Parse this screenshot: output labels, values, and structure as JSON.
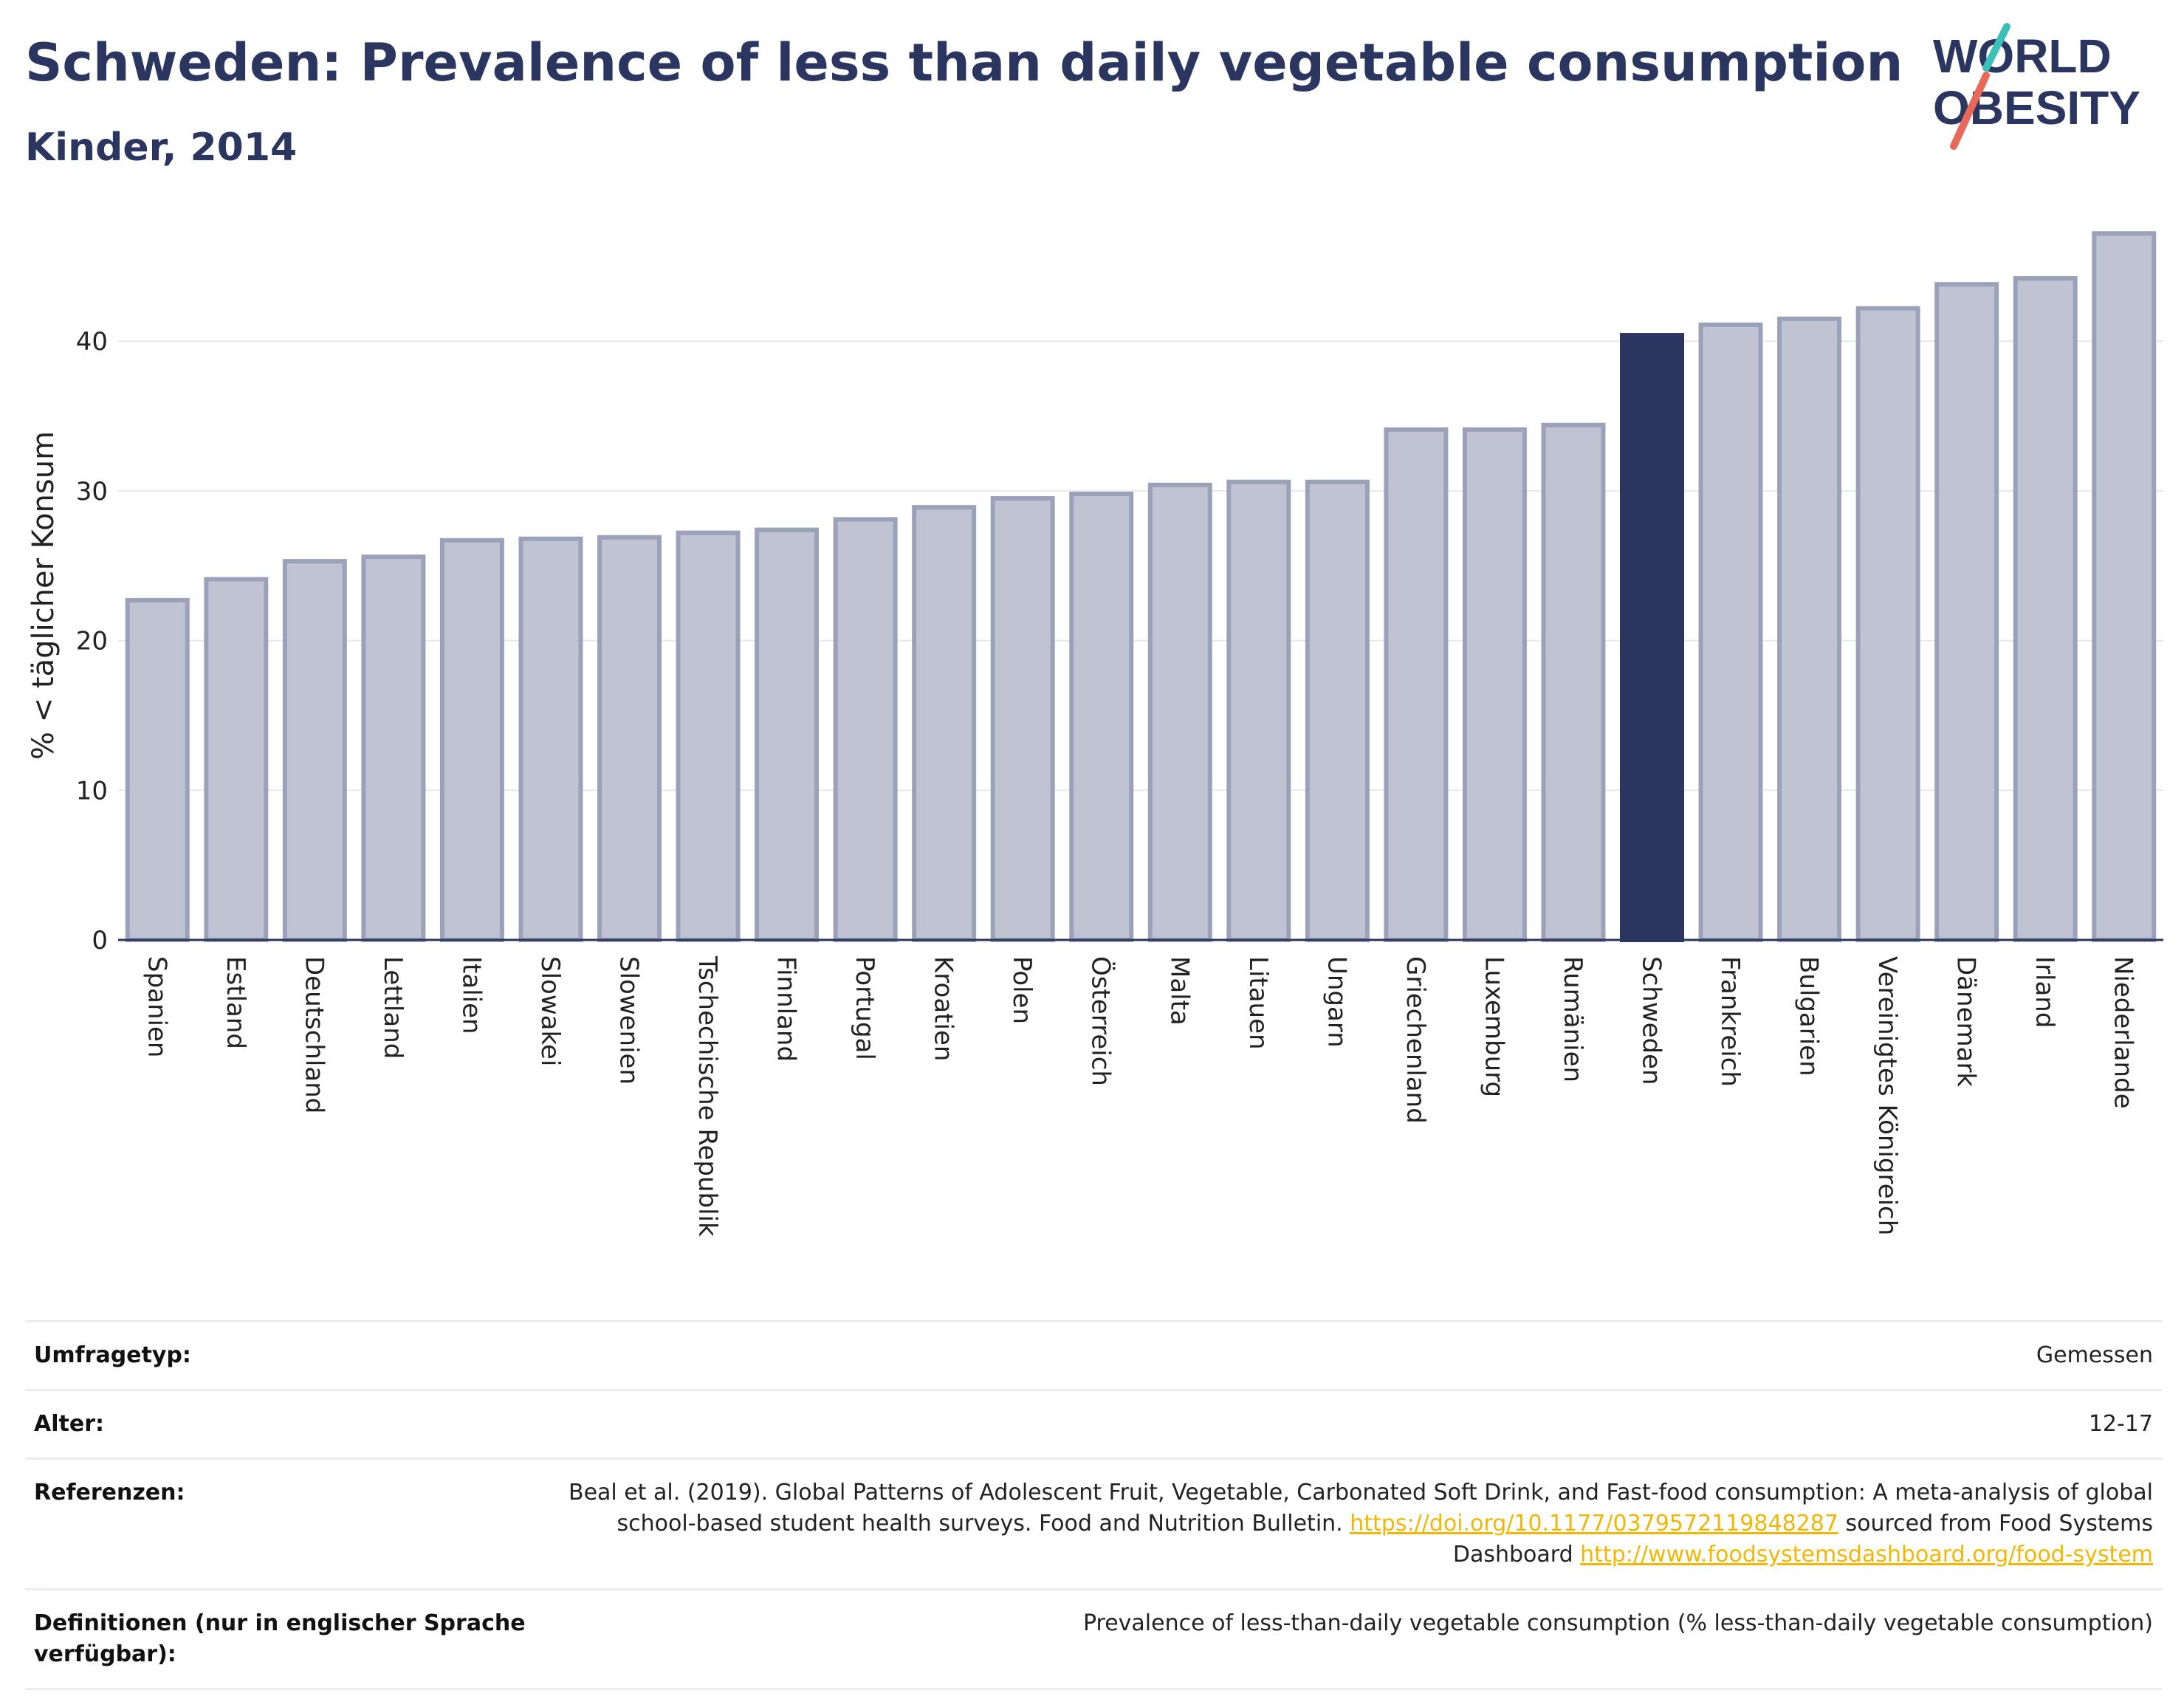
{
  "header": {
    "title": "Schweden: Prevalence of less than daily vegetable consumption",
    "subtitle": "Kinder, 2014"
  },
  "logo": {
    "line1": "WORLD",
    "line2": "OBESITY",
    "colors": {
      "text": "#2a3560",
      "slash_top": "#3bbfb9",
      "slash_bottom": "#e8685a"
    }
  },
  "chart_data": {
    "type": "bar",
    "ylabel": "% < täglicher Konsum",
    "xlabel": "",
    "ylim": [
      0,
      48
    ],
    "yticks": [
      0,
      10,
      20,
      30,
      40
    ],
    "grid": true,
    "categories": [
      "Spanien",
      "Estland",
      "Deutschland",
      "Lettland",
      "Italien",
      "Slowakei",
      "Slowenien",
      "Tschechische Republik",
      "Finnland",
      "Portugal",
      "Kroatien",
      "Polen",
      "Österreich",
      "Malta",
      "Litauen",
      "Ungarn",
      "Griechenland",
      "Luxemburg",
      "Rumänien",
      "Schweden",
      "Frankreich",
      "Bulgarien",
      "Vereinigtes Königreich",
      "Dänemark",
      "Irland",
      "Niederlande"
    ],
    "values": [
      22.7,
      24.1,
      25.3,
      25.6,
      26.7,
      26.8,
      26.9,
      27.2,
      27.4,
      28.1,
      28.9,
      29.5,
      29.8,
      30.4,
      30.6,
      30.6,
      34.1,
      34.1,
      34.4,
      40.4,
      41.1,
      41.5,
      42.2,
      43.8,
      44.2,
      47.2
    ],
    "highlight": "Schweden",
    "colors": {
      "bar": "#c0c4d2",
      "bar_border": "#9ba1b8",
      "highlight": "#2a3560",
      "grid": "#e6e8ee",
      "axis": "#2a3560"
    }
  },
  "meta": {
    "rows": [
      {
        "label": "Umfragetyp:",
        "value": "Gemessen"
      },
      {
        "label": "Alter:",
        "value": "12-17"
      },
      {
        "label": "Referenzen:",
        "text1": "Beal et al. (2019). Global Patterns of Adolescent Fruit, Vegetable, Carbonated Soft Drink, and Fast-food consumption: A meta-analysis of global school-based student health surveys. Food and Nutrition Bulletin. ",
        "link1": "https://doi.org/10.1177/0379572119848287",
        "text2": " sourced from Food Systems Dashboard ",
        "link2": "http://www.foodsystemsdashboard.org/food-system"
      },
      {
        "label": "Definitionen (nur in englischer Sprache verfügbar):",
        "value": "Prevalence of less-than-daily vegetable consumption (% less-than-daily vegetable consumption)"
      }
    ]
  }
}
